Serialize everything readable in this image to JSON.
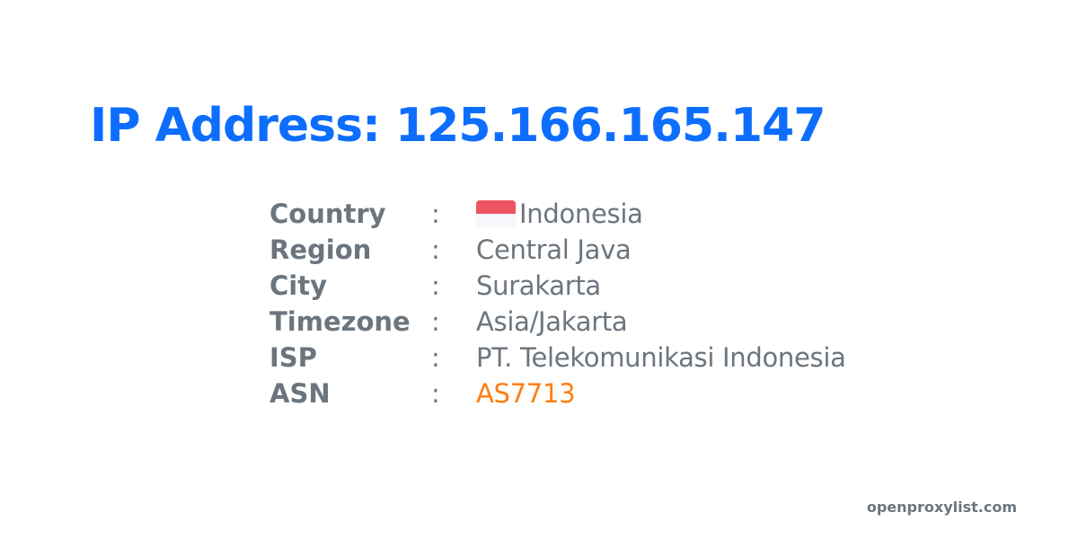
{
  "title": "IP Address: 125.166.165.147",
  "separator": ":",
  "rows": [
    {
      "label": "Country",
      "value": "Indonesia",
      "flag": "indonesia-flag"
    },
    {
      "label": "Region",
      "value": "Central Java"
    },
    {
      "label": "City",
      "value": "Surakarta"
    },
    {
      "label": "Timezone",
      "value": "Asia/Jakarta"
    },
    {
      "label": "ISP",
      "value": "PT. Telekomunikasi Indonesia"
    },
    {
      "label": "ASN",
      "value": "AS7713"
    }
  ],
  "footer": "openproxylist.com",
  "colors": {
    "title": "#0d6efd",
    "text": "#6c757d",
    "asn": "#fd7e14",
    "flag_red": "#ef5360",
    "flag_white": "#f6f7fa"
  }
}
